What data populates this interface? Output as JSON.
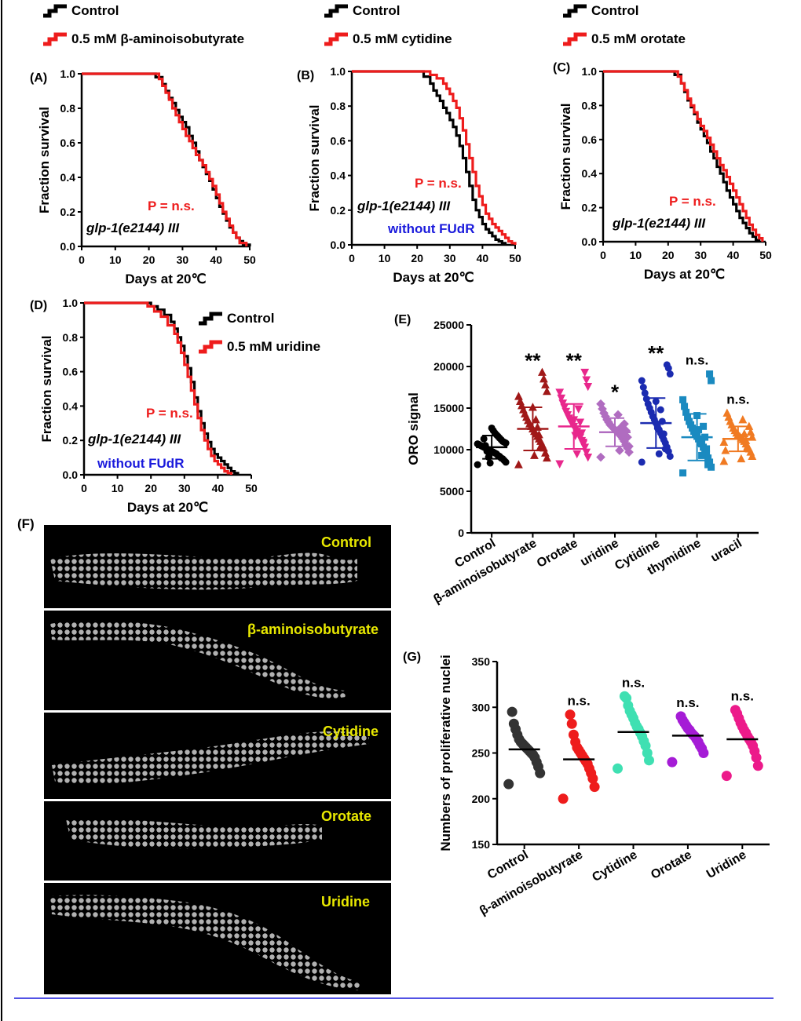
{
  "colors": {
    "control": "#000000",
    "treatment": "#ee1c1c",
    "pvalue": "#ee1c1c",
    "note_blue": "#1a1adc",
    "panel_label_yellow": "#e8e800",
    "rule": "#1a1adc"
  },
  "chart_data": [
    {
      "id": "A",
      "panel_label": "(A)",
      "type": "line",
      "title": "",
      "xlabel": "Days at 20℃",
      "ylabel": "Fraction survival",
      "xlim": [
        0,
        50
      ],
      "ylim": [
        0,
        1
      ],
      "xticks": [
        "0",
        "10",
        "20",
        "30",
        "40",
        "50"
      ],
      "yticks": [
        "0.0",
        "0.2",
        "0.4",
        "0.6",
        "0.8",
        "1.0"
      ],
      "legend": [
        "Control",
        "0.5 mM β-aminoisobutyrate"
      ],
      "pvalue": "P = n.s.",
      "strain": "glp-1(e2144) III",
      "note": "",
      "series": [
        {
          "name": "Control",
          "x": [
            0,
            20,
            22,
            24,
            25,
            26,
            27,
            28,
            29,
            30,
            31,
            32,
            33,
            34,
            35,
            36,
            37,
            38,
            39,
            40,
            41,
            42,
            43,
            44,
            45,
            46,
            47,
            48,
            50
          ],
          "y": [
            1.0,
            1.0,
            0.98,
            0.94,
            0.9,
            0.86,
            0.83,
            0.79,
            0.75,
            0.72,
            0.69,
            0.64,
            0.6,
            0.55,
            0.5,
            0.46,
            0.42,
            0.38,
            0.33,
            0.28,
            0.23,
            0.19,
            0.15,
            0.11,
            0.08,
            0.05,
            0.03,
            0.01,
            0.0
          ]
        },
        {
          "name": "0.5 mM β-aminoisobutyrate",
          "x": [
            0,
            21,
            23,
            24,
            25,
            26,
            27,
            28,
            29,
            30,
            31,
            32,
            33,
            34,
            35,
            36,
            37,
            38,
            39,
            40,
            41,
            42,
            43,
            44,
            45,
            46,
            47,
            49
          ],
          "y": [
            1.0,
            1.0,
            0.97,
            0.93,
            0.89,
            0.85,
            0.8,
            0.76,
            0.72,
            0.68,
            0.64,
            0.61,
            0.57,
            0.53,
            0.5,
            0.47,
            0.43,
            0.39,
            0.35,
            0.3,
            0.25,
            0.2,
            0.16,
            0.12,
            0.08,
            0.05,
            0.02,
            0.0
          ]
        }
      ]
    },
    {
      "id": "B",
      "panel_label": "(B)",
      "type": "line",
      "title": "",
      "xlabel": "Days at 20℃",
      "ylabel": "Fraction survival",
      "xlim": [
        0,
        50
      ],
      "ylim": [
        0,
        1
      ],
      "xticks": [
        "0",
        "10",
        "20",
        "30",
        "40",
        "50"
      ],
      "yticks": [
        "0.0",
        "0.2",
        "0.4",
        "0.6",
        "0.8",
        "1.0"
      ],
      "legend": [
        "Control",
        "0.5 mM cytidine"
      ],
      "pvalue": "P = n.s.",
      "strain": "glp-1(e2144) III",
      "note": "without FUdR",
      "series": [
        {
          "name": "Control",
          "x": [
            0,
            20,
            22,
            24,
            25,
            26,
            27,
            28,
            29,
            30,
            31,
            32,
            33,
            34,
            35,
            36,
            37,
            38,
            39,
            40,
            41,
            42,
            43,
            44,
            45,
            46,
            47
          ],
          "y": [
            1.0,
            1.0,
            0.97,
            0.93,
            0.89,
            0.86,
            0.83,
            0.79,
            0.76,
            0.72,
            0.68,
            0.63,
            0.57,
            0.5,
            0.42,
            0.34,
            0.26,
            0.2,
            0.16,
            0.12,
            0.09,
            0.07,
            0.05,
            0.03,
            0.02,
            0.01,
            0.0
          ]
        },
        {
          "name": "0.5 mM cytidine",
          "x": [
            0,
            22,
            24,
            26,
            28,
            29,
            30,
            31,
            32,
            33,
            34,
            35,
            36,
            37,
            38,
            39,
            40,
            41,
            42,
            43,
            44,
            45,
            46,
            47,
            48,
            49,
            50
          ],
          "y": [
            1.0,
            1.0,
            0.98,
            0.96,
            0.93,
            0.9,
            0.87,
            0.83,
            0.79,
            0.73,
            0.66,
            0.58,
            0.5,
            0.42,
            0.34,
            0.28,
            0.23,
            0.18,
            0.15,
            0.12,
            0.1,
            0.08,
            0.06,
            0.04,
            0.02,
            0.01,
            0.0
          ]
        }
      ]
    },
    {
      "id": "C",
      "panel_label": "(C)",
      "type": "line",
      "title": "",
      "xlabel": "Days at 20℃",
      "ylabel": "Fraction survival",
      "xlim": [
        0,
        50
      ],
      "ylim": [
        0,
        1
      ],
      "xticks": [
        "0",
        "10",
        "20",
        "30",
        "40",
        "50"
      ],
      "yticks": [
        "0.0",
        "0.2",
        "0.4",
        "0.6",
        "0.8",
        "1.0"
      ],
      "legend": [
        "Control",
        "0.5 mM orotate"
      ],
      "pvalue": "P = n.s.",
      "strain": "glp-1(e2144) III",
      "note": "",
      "series": [
        {
          "name": "Control",
          "x": [
            0,
            20,
            22,
            24,
            25,
            26,
            27,
            28,
            29,
            30,
            31,
            32,
            33,
            34,
            35,
            36,
            37,
            38,
            39,
            40,
            41,
            42,
            43,
            44,
            45,
            46,
            47,
            48
          ],
          "y": [
            1.0,
            1.0,
            0.98,
            0.93,
            0.88,
            0.83,
            0.79,
            0.75,
            0.7,
            0.66,
            0.62,
            0.58,
            0.53,
            0.49,
            0.44,
            0.4,
            0.35,
            0.3,
            0.26,
            0.22,
            0.18,
            0.14,
            0.11,
            0.08,
            0.05,
            0.03,
            0.01,
            0.0
          ]
        },
        {
          "name": "0.5 mM orotate",
          "x": [
            0,
            21,
            23,
            24,
            25,
            26,
            27,
            28,
            29,
            30,
            31,
            32,
            33,
            34,
            35,
            36,
            37,
            38,
            39,
            40,
            41,
            42,
            43,
            44,
            45,
            46,
            47,
            48,
            49
          ],
          "y": [
            1.0,
            1.0,
            0.97,
            0.93,
            0.89,
            0.84,
            0.8,
            0.76,
            0.72,
            0.68,
            0.65,
            0.61,
            0.57,
            0.53,
            0.49,
            0.45,
            0.42,
            0.38,
            0.34,
            0.3,
            0.26,
            0.22,
            0.18,
            0.14,
            0.1,
            0.07,
            0.04,
            0.02,
            0.0
          ]
        }
      ]
    },
    {
      "id": "D",
      "panel_label": "(D)",
      "type": "line",
      "title": "",
      "xlabel": "Days at 20℃",
      "ylabel": "Fraction survival",
      "xlim": [
        0,
        50
      ],
      "ylim": [
        0,
        1
      ],
      "xticks": [
        "0",
        "10",
        "20",
        "30",
        "40",
        "50"
      ],
      "yticks": [
        "0.0",
        "0.2",
        "0.4",
        "0.6",
        "0.8",
        "1.0"
      ],
      "legend": [
        "Control",
        "0.5 mM uridine"
      ],
      "pvalue": "P = n.s.",
      "strain": "glp-1(e2144) III",
      "note": "without FUdR",
      "series": [
        {
          "name": "Control",
          "x": [
            0,
            18,
            20,
            22,
            24,
            26,
            27,
            28,
            29,
            30,
            31,
            32,
            33,
            34,
            35,
            36,
            37,
            38,
            39,
            40,
            41,
            42,
            43,
            44,
            45,
            46
          ],
          "y": [
            1.0,
            1.0,
            0.98,
            0.96,
            0.93,
            0.89,
            0.85,
            0.8,
            0.75,
            0.69,
            0.62,
            0.54,
            0.45,
            0.37,
            0.3,
            0.24,
            0.19,
            0.15,
            0.12,
            0.1,
            0.08,
            0.06,
            0.04,
            0.02,
            0.01,
            0.0
          ]
        },
        {
          "name": "0.5 mM uridine",
          "x": [
            0,
            17,
            19,
            21,
            23,
            25,
            27,
            28,
            29,
            30,
            31,
            32,
            33,
            34,
            35,
            36,
            37,
            38,
            39,
            40,
            41,
            42,
            43,
            44
          ],
          "y": [
            1.0,
            1.0,
            0.98,
            0.95,
            0.92,
            0.87,
            0.82,
            0.77,
            0.71,
            0.64,
            0.57,
            0.49,
            0.41,
            0.33,
            0.26,
            0.2,
            0.15,
            0.11,
            0.08,
            0.06,
            0.04,
            0.02,
            0.01,
            0.0
          ]
        }
      ]
    },
    {
      "id": "E",
      "panel_label": "(E)",
      "type": "scatter",
      "title": "",
      "xlabel": "",
      "ylabel": "ORO signal",
      "ylim": [
        0,
        25000
      ],
      "yticks": [
        "0",
        "5000",
        "10000",
        "15000",
        "20000",
        "25000"
      ],
      "categories": [
        "Control",
        "β-aminoisobutyrate",
        "Orotate",
        "uridine",
        "Cytidine",
        "thymidine",
        "uracil"
      ],
      "significance": [
        "",
        "**",
        "**",
        "*",
        "**",
        "n.s.",
        "n.s."
      ],
      "series": [
        {
          "name": "Control",
          "color": "#000000",
          "marker": "circle",
          "mean": 10300,
          "sd": 1400,
          "values": [
            8200,
            8500,
            8700,
            8900,
            9000,
            9200,
            9300,
            9500,
            9600,
            9700,
            9800,
            9900,
            10000,
            10100,
            10200,
            10300,
            10400,
            10500,
            10600,
            10700,
            10800,
            10900,
            11000,
            11200,
            11400,
            11600,
            11800,
            12000,
            12300,
            12600,
            8400,
            9100,
            9800,
            10500,
            11300
          ]
        },
        {
          "name": "β-aminoisobutyrate",
          "color": "#a01818",
          "marker": "triangle",
          "mean": 12500,
          "sd": 2600,
          "values": [
            8200,
            9000,
            9600,
            10200,
            10600,
            11000,
            11300,
            11600,
            11900,
            12200,
            12500,
            12800,
            13100,
            13500,
            13900,
            14300,
            14800,
            15300,
            15800,
            16400,
            17000,
            17800,
            18500,
            19300,
            10400,
            11800,
            12700,
            13600,
            9300,
            15100
          ]
        },
        {
          "name": "Orotate",
          "color": "#e8278c",
          "marker": "triangle-down",
          "mean": 12800,
          "sd": 2700,
          "values": [
            8300,
            9100,
            9700,
            10300,
            10700,
            11100,
            11500,
            11900,
            12200,
            12500,
            12800,
            13100,
            13400,
            13800,
            14200,
            14600,
            15100,
            15600,
            16200,
            16900,
            17600,
            18400,
            19300,
            10900,
            12000,
            13300,
            14900,
            9500,
            11700,
            13600
          ]
        },
        {
          "name": "uridine",
          "color": "#b06cc0",
          "marker": "diamond",
          "mean": 12100,
          "sd": 1700,
          "values": [
            9100,
            9700,
            10200,
            10600,
            11000,
            11300,
            11600,
            11800,
            12000,
            12200,
            12400,
            12600,
            12800,
            13000,
            13300,
            13600,
            14000,
            14400,
            14900,
            15500,
            10400,
            11500,
            12300,
            13100,
            11900,
            12700,
            9900,
            14200
          ]
        },
        {
          "name": "Cytidine",
          "color": "#1b2bb0",
          "marker": "circle",
          "mean": 13200,
          "sd": 3000,
          "values": [
            8500,
            9200,
            9800,
            10300,
            10800,
            11200,
            11600,
            12000,
            12400,
            12800,
            13200,
            13600,
            14000,
            14500,
            15000,
            15500,
            16100,
            16800,
            17500,
            18300,
            19100,
            19800,
            20200,
            10100,
            11900,
            13400,
            14800,
            9500,
            12600,
            15800
          ]
        },
        {
          "name": "thymidine",
          "color": "#1a8ac0",
          "marker": "square",
          "mean": 11500,
          "sd": 2800,
          "values": [
            7200,
            7900,
            8500,
            9000,
            9500,
            9900,
            10300,
            10700,
            11000,
            11300,
            11600,
            11900,
            12200,
            12600,
            13000,
            13400,
            13900,
            14500,
            15200,
            16000,
            18300,
            19100,
            8200,
            10100,
            11500,
            12800,
            9300,
            10800,
            12400,
            14100
          ]
        },
        {
          "name": "uracil",
          "color": "#f07a22",
          "marker": "triangle",
          "mean": 11300,
          "sd": 1500,
          "values": [
            8600,
            9200,
            9700,
            10100,
            10400,
            10700,
            11000,
            11200,
            11400,
            11600,
            11800,
            12000,
            12300,
            12600,
            13000,
            13400,
            13900,
            14400,
            9900,
            10900,
            11500,
            12100,
            12800,
            10300,
            11100,
            11900,
            13600,
            8900
          ]
        }
      ]
    },
    {
      "id": "G",
      "panel_label": "(G)",
      "type": "scatter",
      "title": "",
      "xlabel": "",
      "ylabel": "Numbers of proliferative nuclei",
      "ylim": [
        150,
        350
      ],
      "yticks": [
        "150",
        "200",
        "250",
        "300",
        "350"
      ],
      "categories": [
        "Control",
        "β-aminoisobutyrate",
        "Cytidine",
        "Orotate",
        "Uridine"
      ],
      "significance": [
        "",
        "n.s.",
        "n.s.",
        "n.s.",
        "n.s."
      ],
      "series": [
        {
          "name": "Control",
          "color": "#333333",
          "mean": 254,
          "values": [
            216,
            228,
            235,
            240,
            245,
            248,
            250,
            252,
            254,
            256,
            258,
            260,
            262,
            265,
            270,
            276,
            282,
            295
          ]
        },
        {
          "name": "β-aminoisobutyrate",
          "color": "#ee1c1c",
          "mean": 243,
          "values": [
            200,
            213,
            222,
            228,
            233,
            238,
            241,
            244,
            247,
            250,
            253,
            256,
            262,
            270,
            282,
            292
          ]
        },
        {
          "name": "Cytidine",
          "color": "#3fe0b2",
          "mean": 273,
          "values": [
            233,
            242,
            250,
            258,
            263,
            268,
            272,
            276,
            279,
            283,
            288,
            292,
            296,
            302,
            310,
            312
          ]
        },
        {
          "name": "Orotate",
          "color": "#a51cd6",
          "mean": 269,
          "values": [
            240,
            250,
            255,
            258,
            262,
            265,
            268,
            270,
            272,
            275,
            277,
            280,
            283,
            286,
            290
          ]
        },
        {
          "name": "Uridine",
          "color": "#ec1a8a",
          "mean": 265,
          "values": [
            225,
            236,
            245,
            252,
            258,
            262,
            265,
            268,
            272,
            275,
            279,
            283,
            288,
            293,
            297
          ]
        }
      ]
    }
  ],
  "images": {
    "panel_label": "(F)",
    "labels": [
      "Control",
      "β-aminoisobutyrate",
      "Cytidine",
      "Orotate",
      "Uridine"
    ]
  }
}
